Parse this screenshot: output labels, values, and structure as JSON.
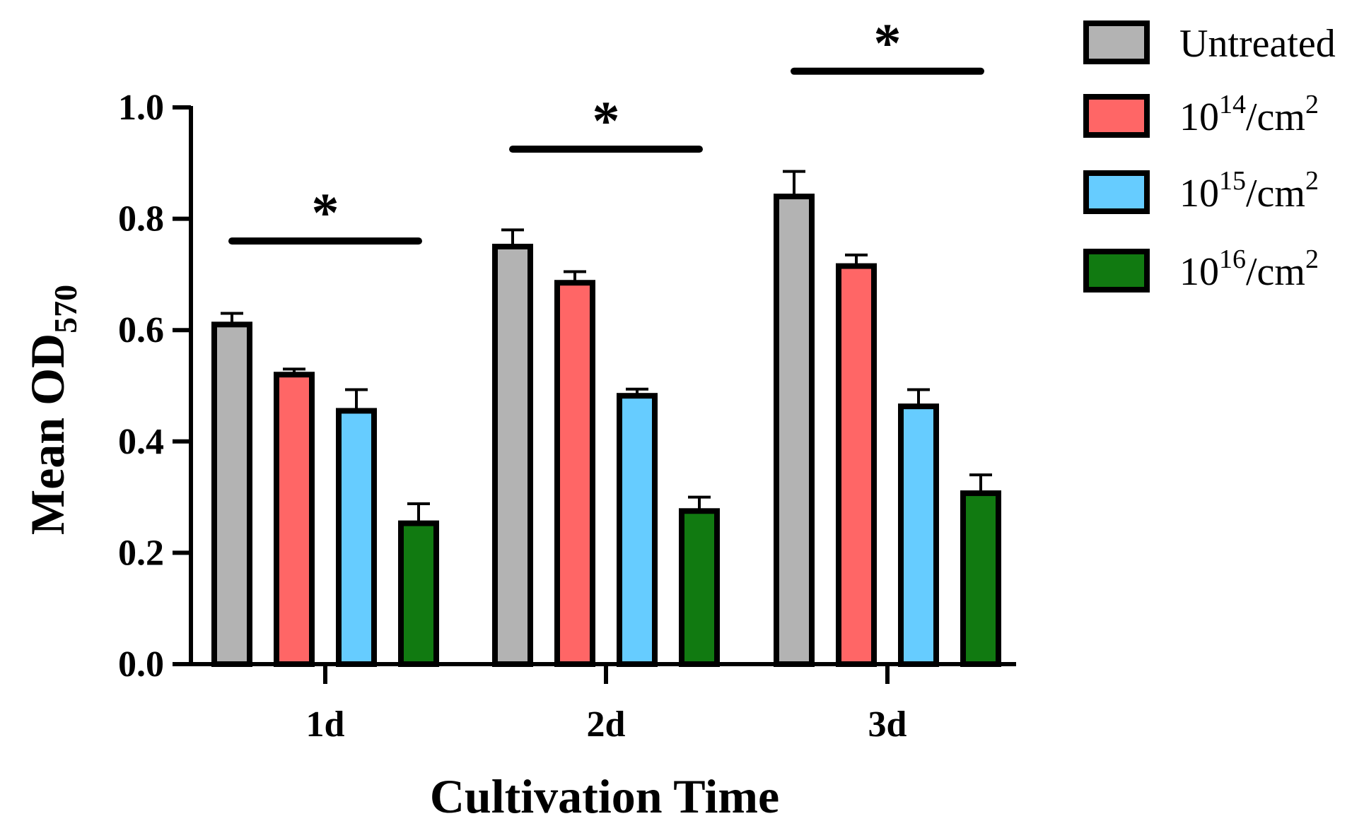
{
  "chart_data": {
    "type": "bar",
    "categories": [
      "1d",
      "2d",
      "3d"
    ],
    "series": [
      {
        "name": "Untreated",
        "base": "Untreated",
        "sup": "",
        "suffix": "",
        "color": "#b3b3b3",
        "values": [
          0.61,
          0.75,
          0.84
        ],
        "errors": [
          0.02,
          0.03,
          0.045
        ]
      },
      {
        "name": "10^14/cm^2",
        "base": "10",
        "sup": "14",
        "suffix": "/cm",
        "color": "#ff6666",
        "values": [
          0.52,
          0.685,
          0.715
        ],
        "errors": [
          0.01,
          0.02,
          0.02
        ]
      },
      {
        "name": "10^15/cm^2",
        "base": "10",
        "sup": "15",
        "suffix": "/cm",
        "color": "#66ccff",
        "values": [
          0.455,
          0.482,
          0.463
        ],
        "errors": [
          0.038,
          0.012,
          0.03
        ]
      },
      {
        "name": "10^16/cm^2",
        "base": "10",
        "sup": "16",
        "suffix": "/cm",
        "color": "#117a11",
        "values": [
          0.253,
          0.275,
          0.307
        ],
        "errors": [
          0.035,
          0.025,
          0.033
        ]
      }
    ],
    "significance": [
      {
        "category": "1d",
        "label": "*",
        "y": 0.76
      },
      {
        "category": "2d",
        "label": "*",
        "y": 0.925
      },
      {
        "category": "3d",
        "label": "*",
        "y": 1.065
      }
    ],
    "ylim": [
      0,
      1.0
    ],
    "yticks": [
      "0.0",
      "0.2",
      "0.4",
      "0.6",
      "0.8",
      "1.0"
    ],
    "ylabel_main": "Mean OD",
    "ylabel_sub": "570",
    "xlabel": "Cultivation Time",
    "unit_sup": "2",
    "legend_position": "top-right"
  }
}
